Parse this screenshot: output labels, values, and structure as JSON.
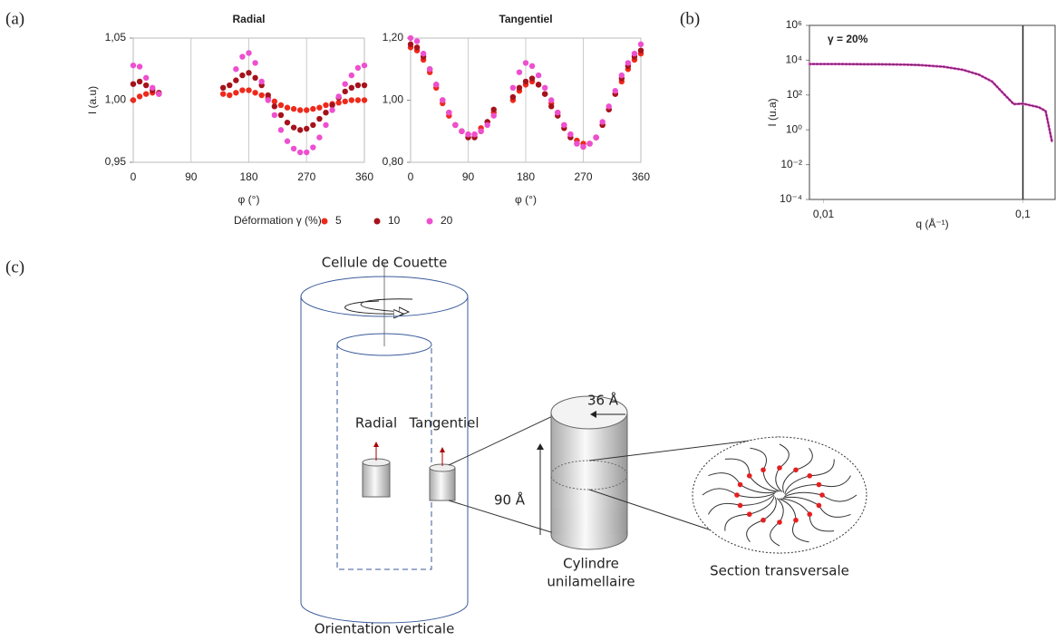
{
  "panel_labels": [
    "(a)",
    "(b)",
    "(c)"
  ],
  "legend": {
    "title": "Déformation γ (%)",
    "items": [
      {
        "name": "5",
        "color": "#ee2a1b"
      },
      {
        "name": "10",
        "color": "#a5121c"
      },
      {
        "name": "20",
        "color": "#ee4fd0"
      }
    ]
  },
  "chart_data": [
    {
      "type": "scatter",
      "title": "Radial",
      "x_label": "φ (°)",
      "y_label": "I (a.u)",
      "xlim": [
        0,
        360
      ],
      "ylim": [
        0.95,
        1.05
      ],
      "xticks": [
        0,
        90,
        180,
        270,
        360
      ],
      "yticks": [
        {
          "value": 0.95,
          "label": "0,95"
        },
        {
          "value": 1.0,
          "label": "1,00"
        },
        {
          "value": 1.05,
          "label": "1,05"
        }
      ],
      "grid": "x",
      "series": [
        {
          "color": "#ee2a1b",
          "x": [
            0,
            10,
            20,
            30,
            40,
            140,
            150,
            160,
            170,
            180,
            190,
            200,
            210,
            220,
            230,
            240,
            250,
            260,
            270,
            280,
            290,
            300,
            310,
            320,
            330,
            340,
            350,
            360
          ],
          "values": [
            1.0,
            1.003,
            1.005,
            1.006,
            1.005,
            1.005,
            1.004,
            1.006,
            1.008,
            1.008,
            1.006,
            1.004,
            1.002,
            0.999,
            0.996,
            0.994,
            0.993,
            0.992,
            0.992,
            0.993,
            0.994,
            0.996,
            0.997,
            0.998,
            0.999,
            1.0,
            1.0,
            1.0
          ]
        },
        {
          "color": "#a5121c",
          "x": [
            0,
            10,
            20,
            30,
            40,
            140,
            150,
            160,
            170,
            180,
            190,
            200,
            210,
            220,
            230,
            240,
            250,
            260,
            270,
            280,
            290,
            300,
            310,
            320,
            330,
            340,
            350,
            360
          ],
          "values": [
            1.013,
            1.015,
            1.012,
            1.008,
            1.006,
            1.01,
            1.012,
            1.016,
            1.02,
            1.022,
            1.018,
            1.012,
            1.004,
            0.995,
            0.988,
            0.982,
            0.978,
            0.976,
            0.977,
            0.98,
            0.985,
            0.99,
            0.996,
            1.002,
            1.007,
            1.01,
            1.012,
            1.012
          ]
        },
        {
          "color": "#ee4fd0",
          "x": [
            0,
            10,
            20,
            30,
            40,
            160,
            170,
            180,
            190,
            200,
            210,
            220,
            230,
            240,
            250,
            260,
            270,
            280,
            290,
            300,
            310,
            320,
            330,
            340,
            350,
            360
          ],
          "values": [
            1.028,
            1.027,
            1.018,
            1.01,
            1.005,
            1.025,
            1.035,
            1.038,
            1.03,
            1.015,
            1.0,
            0.988,
            0.976,
            0.967,
            0.961,
            0.958,
            0.958,
            0.962,
            0.97,
            0.98,
            0.992,
            1.003,
            1.013,
            1.02,
            1.026,
            1.028
          ]
        }
      ]
    },
    {
      "type": "scatter",
      "title": "Tangentiel",
      "x_label": "φ (°)",
      "xlim": [
        0,
        360
      ],
      "ylim": [
        0.8,
        1.2
      ],
      "xticks": [
        0,
        90,
        180,
        270,
        360
      ],
      "yticks": [
        {
          "value": 0.8,
          "label": "0,80"
        },
        {
          "value": 1.0,
          "label": "1,00"
        },
        {
          "value": 1.2,
          "label": "1,20"
        }
      ],
      "grid": "x",
      "series": [
        {
          "color": "#ee2a1b",
          "x": [
            0,
            10,
            20,
            30,
            40,
            50,
            60,
            70,
            80,
            90,
            100,
            110,
            120,
            130,
            160,
            170,
            180,
            190,
            200,
            210,
            220,
            230,
            240,
            250,
            260,
            270,
            280,
            290,
            300,
            310,
            320,
            330,
            340,
            350,
            360
          ],
          "values": [
            1.17,
            1.16,
            1.13,
            1.09,
            1.04,
            0.99,
            0.95,
            0.92,
            0.9,
            0.89,
            0.89,
            0.91,
            0.93,
            0.96,
            1.0,
            1.03,
            1.05,
            1.06,
            1.05,
            1.02,
            0.99,
            0.96,
            0.92,
            0.89,
            0.87,
            0.86,
            0.86,
            0.88,
            0.92,
            0.97,
            1.02,
            1.06,
            1.1,
            1.13,
            1.15
          ]
        },
        {
          "color": "#a5121c",
          "x": [
            0,
            10,
            20,
            30,
            40,
            50,
            60,
            70,
            80,
            90,
            100,
            110,
            120,
            130,
            160,
            170,
            180,
            190,
            200,
            210,
            220,
            230,
            240,
            250,
            260,
            270,
            280,
            290,
            300,
            310,
            320,
            330,
            340,
            350,
            360
          ],
          "values": [
            1.18,
            1.17,
            1.14,
            1.1,
            1.05,
            1.0,
            0.96,
            0.92,
            0.9,
            0.88,
            0.88,
            0.9,
            0.93,
            0.97,
            1.01,
            1.04,
            1.06,
            1.07,
            1.05,
            1.02,
            0.98,
            0.95,
            0.91,
            0.88,
            0.86,
            0.85,
            0.86,
            0.88,
            0.92,
            0.97,
            1.02,
            1.07,
            1.11,
            1.14,
            1.16
          ]
        },
        {
          "color": "#ee4fd0",
          "x": [
            0,
            10,
            20,
            30,
            40,
            50,
            60,
            70,
            80,
            90,
            100,
            110,
            120,
            130,
            160,
            170,
            180,
            190,
            200,
            210,
            220,
            230,
            240,
            250,
            260,
            270,
            280,
            290,
            300,
            310,
            320,
            330,
            340,
            350,
            360
          ],
          "values": [
            1.2,
            1.19,
            1.15,
            1.1,
            1.05,
            1.0,
            0.96,
            0.92,
            0.9,
            0.89,
            0.89,
            0.9,
            0.92,
            0.95,
            1.04,
            1.09,
            1.12,
            1.11,
            1.08,
            1.04,
            1.0,
            0.96,
            0.92,
            0.89,
            0.86,
            0.85,
            0.86,
            0.88,
            0.93,
            0.98,
            1.03,
            1.08,
            1.12,
            1.15,
            1.18
          ]
        }
      ]
    },
    {
      "type": "line",
      "x_label": "q (Å⁻¹)",
      "y_label": "I (u.a)",
      "xscale": "log",
      "yscale": "log",
      "xlim": [
        0.0085,
        0.145
      ],
      "ylim": [
        0.0001,
        1000000
      ],
      "xticks": [
        {
          "value": 0.01,
          "label": "0,01"
        },
        {
          "value": 0.1,
          "label": "0,1"
        }
      ],
      "yticks": [
        {
          "value": 0.0001,
          "label": "10⁻⁴"
        },
        {
          "value": 0.01,
          "label": "10⁻²"
        },
        {
          "value": 1,
          "label": "10⁰"
        },
        {
          "value": 100,
          "label": "10²"
        },
        {
          "value": 10000,
          "label": "10⁴"
        },
        {
          "value": 1000000,
          "label": "10⁶"
        }
      ],
      "vlines": [
        0.1
      ],
      "series": [
        {
          "name": "γ = 20%",
          "color": "#ee4fd0",
          "x": [
            0.0085,
            0.01,
            0.012,
            0.015,
            0.02,
            0.025,
            0.03,
            0.04,
            0.05,
            0.06,
            0.07,
            0.08,
            0.09,
            0.1,
            0.11,
            0.12,
            0.13,
            0.14
          ],
          "values": [
            6000,
            6000,
            6000,
            5900,
            5800,
            5600,
            5300,
            4200,
            2800,
            1500,
            600,
            120,
            30,
            32,
            25,
            20,
            12,
            0.2
          ]
        }
      ]
    }
  ],
  "diagram": {
    "title": "Cellule de Couette",
    "radial": "Radial",
    "tangential": "Tangentiel",
    "diameter": "36 Å",
    "height": "90 Å",
    "cylinder": [
      "Cylindre",
      "unilamellaire"
    ],
    "section": "Section transversale",
    "orientation": "Orientation verticale"
  }
}
